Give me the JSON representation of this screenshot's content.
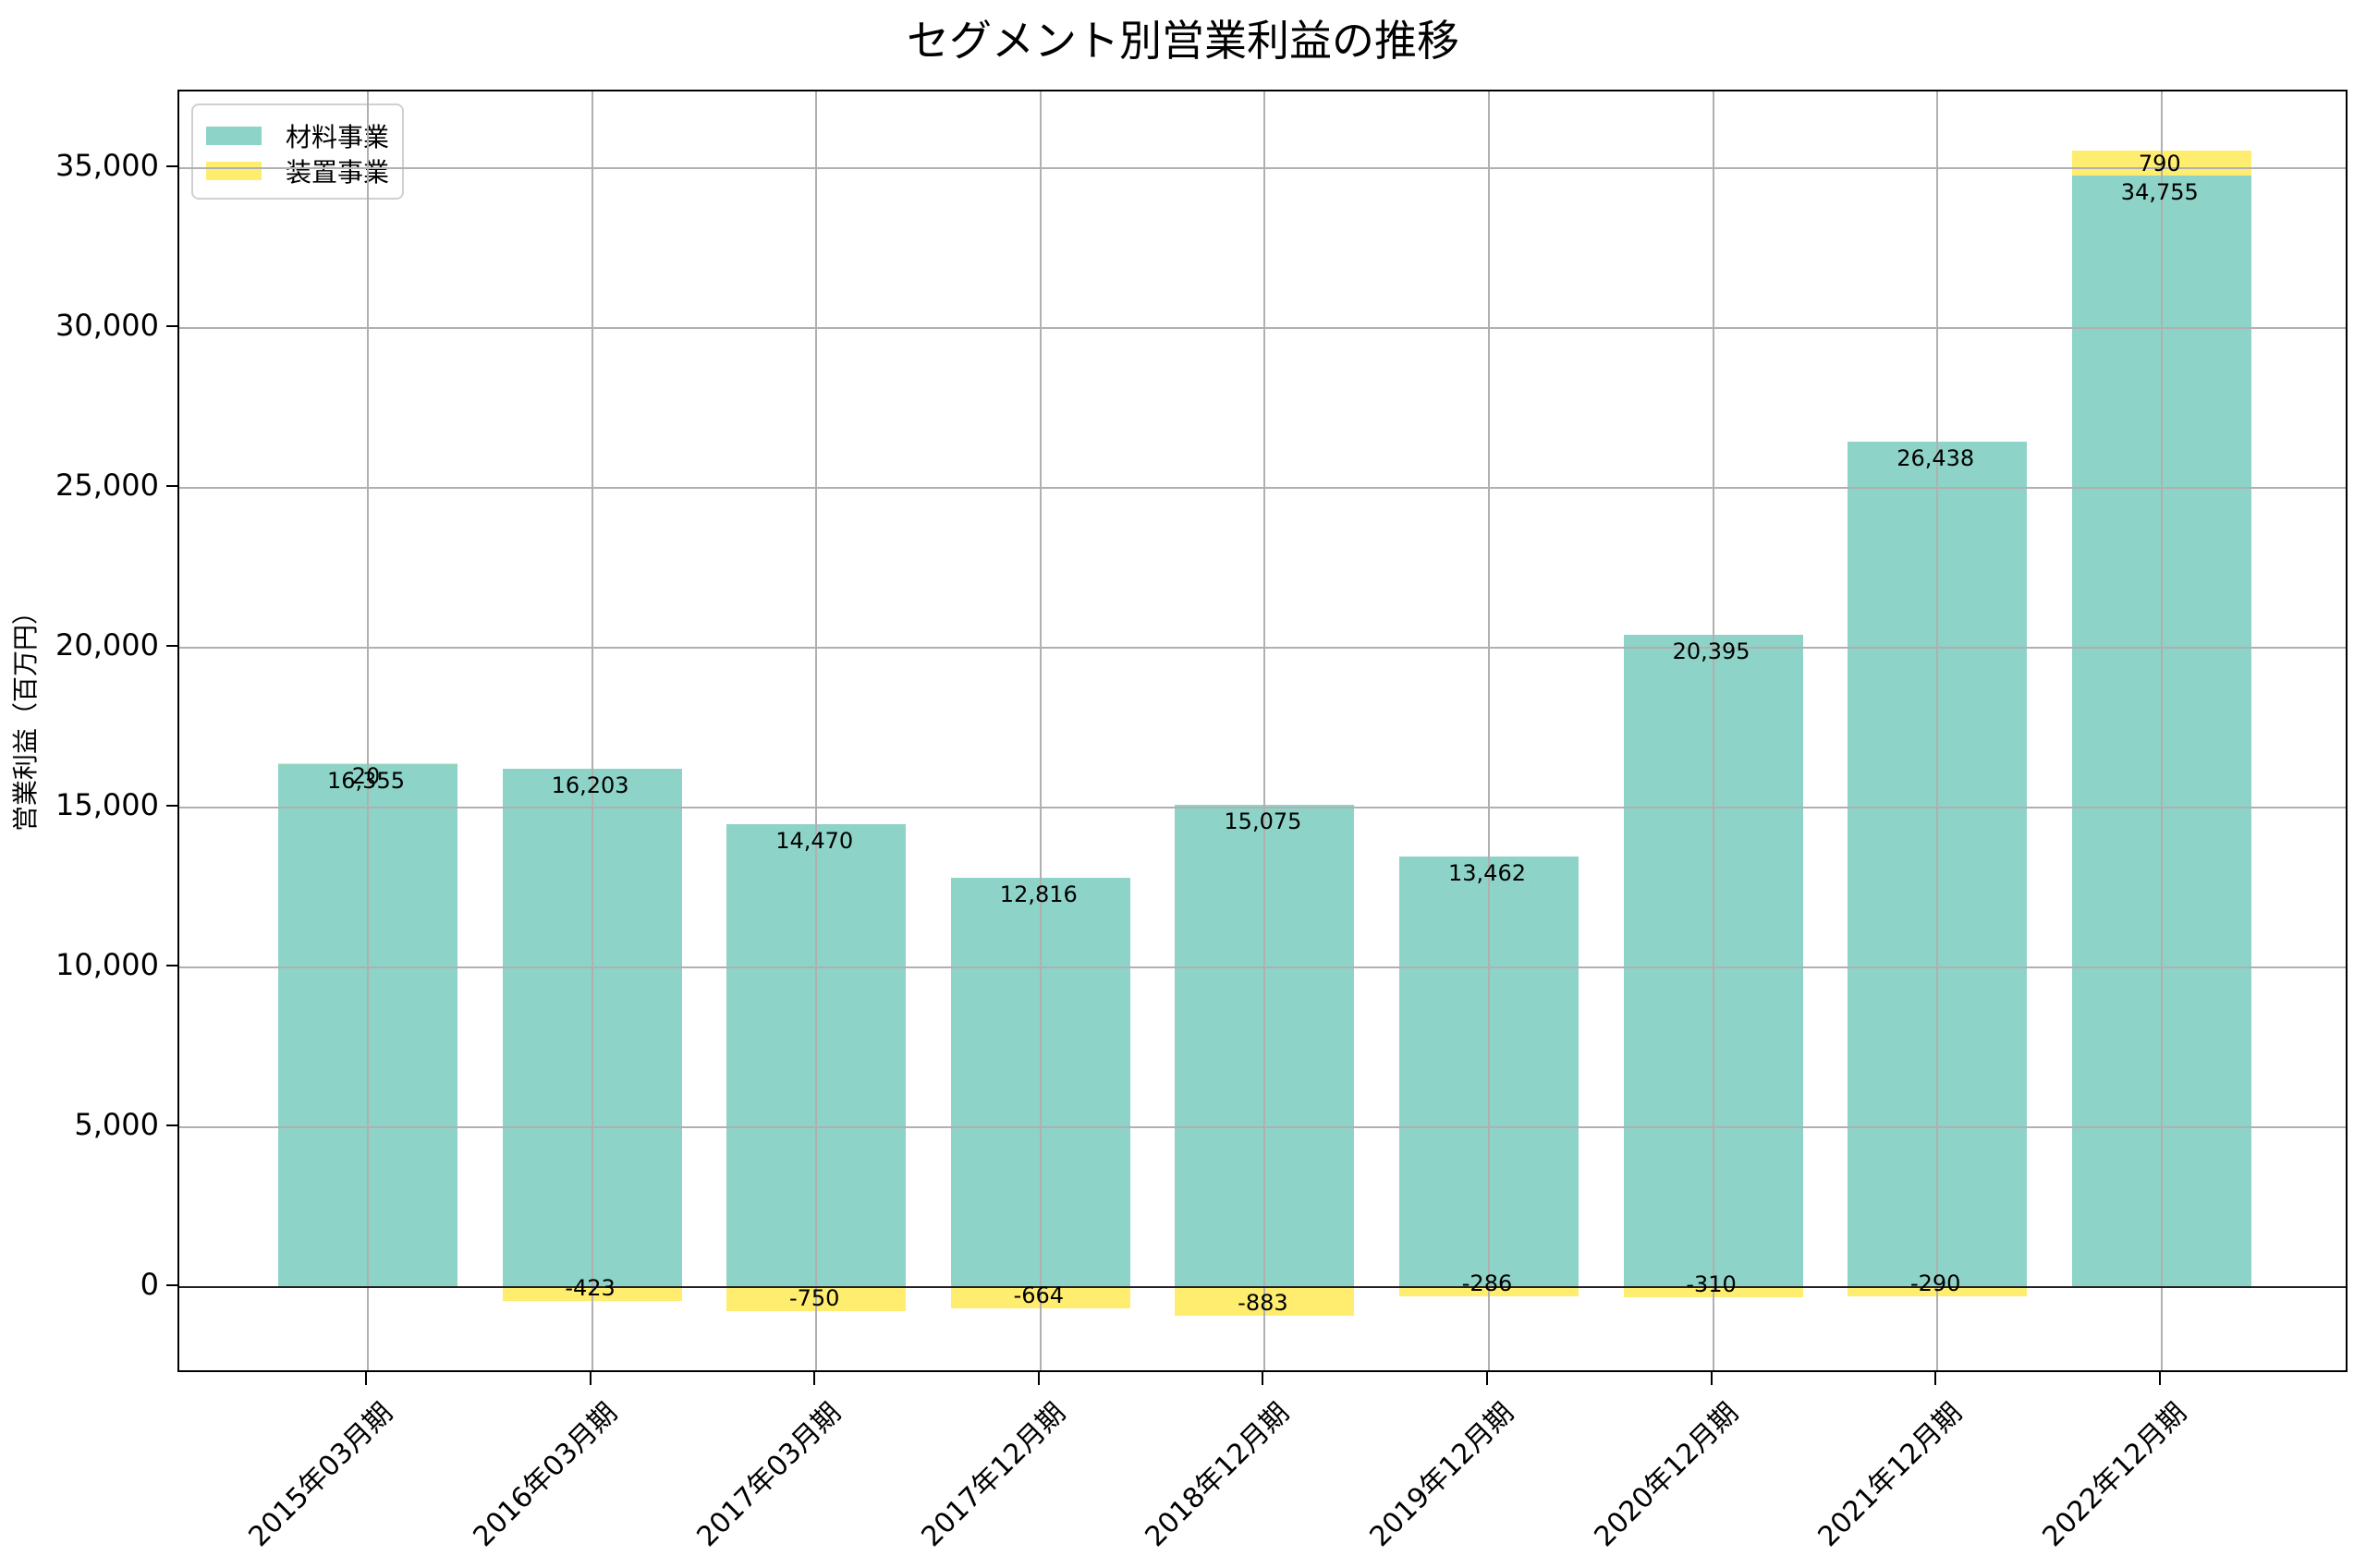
{
  "chart_data": {
    "type": "bar",
    "stacked": true,
    "title": "セグメント別営業利益の推移",
    "xlabel": "",
    "ylabel": "営業利益（百万円）",
    "ylim": [
      -2700,
      37300
    ],
    "yticks": [
      0,
      5000,
      10000,
      15000,
      20000,
      25000,
      30000,
      35000
    ],
    "ytick_labels": [
      "0",
      "5,000",
      "10,000",
      "15,000",
      "20,000",
      "25,000",
      "30,000",
      "35,000"
    ],
    "grid": true,
    "legend_position": "upper left",
    "categories": [
      "2015年03月期",
      "2016年03月期",
      "2017年03月期",
      "2017年12月期",
      "2018年12月期",
      "2019年12月期",
      "2020年12月期",
      "2021年12月期",
      "2022年12月期"
    ],
    "series": [
      {
        "name": "材料事業",
        "color": "#8dd3c7",
        "values": [
          16355,
          16203,
          14470,
          12816,
          15075,
          13462,
          20395,
          26438,
          34755
        ],
        "labels": [
          "16,355",
          "16,203",
          "14,470",
          "12,816",
          "15,075",
          "13,462",
          "20,395",
          "26,438",
          "34,755"
        ]
      },
      {
        "name": "装置事業",
        "color": "#ffed6f",
        "values": [
          20,
          -423,
          -750,
          -664,
          -883,
          -286,
          -310,
          -290,
          790
        ],
        "labels": [
          "20",
          "-423",
          "-750",
          "-664",
          "-883",
          "-286",
          "-310",
          "-290",
          "790"
        ]
      }
    ]
  },
  "legend": {
    "items": [
      {
        "label": "材料事業",
        "color": "#8dd3c7"
      },
      {
        "label": "装置事業",
        "color": "#ffed6f"
      }
    ]
  }
}
